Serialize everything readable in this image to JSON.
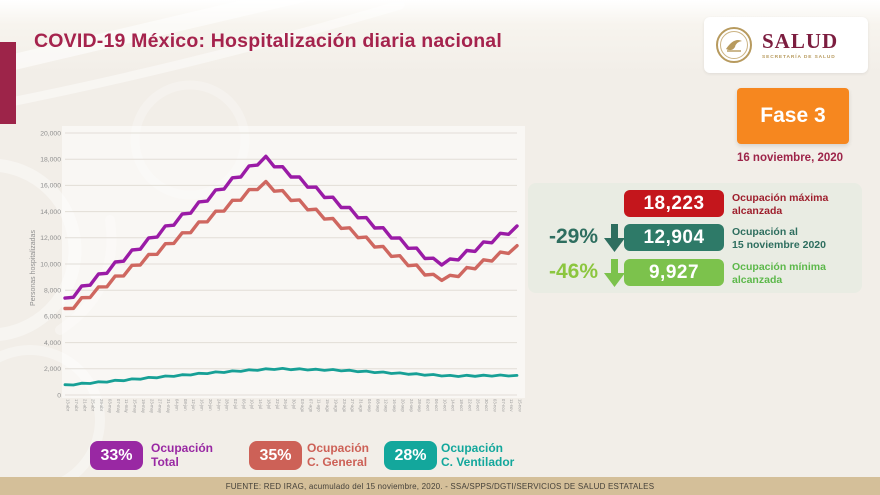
{
  "page": {
    "title": "COVID-19 México: Hospitalización diaria nacional",
    "footer": "FUENTE: RED IRAG, acumulado del 15 noviembre, 2020. -  SSA/SPPS/DGTI/SERVICIOS DE SALUD ESTATALES"
  },
  "logo": {
    "title": "SALUD",
    "subtitle": "SECRETARÍA DE SALUD"
  },
  "phase": {
    "label": "Fase 3",
    "date": "16 noviembre, 2020"
  },
  "colors": {
    "accent_maroon": "#9d2449",
    "title_text": "#a5234d",
    "phase_orange": "#f6871f",
    "logo_maroon": "#7c1d3f",
    "logo_gold": "#b79a5e",
    "panel_bg": "#e9ece3",
    "footer_bg": "#d4bf99"
  },
  "stats": {
    "rows": [
      {
        "delta": "",
        "value": "18,223",
        "label_line1": "Ocupación máxima",
        "label_line2": "alcanzada",
        "pill_color": "#c4161c",
        "delta_color": "#2e6e5f",
        "label_color": "#9e1f2d"
      },
      {
        "delta": "-29%",
        "value": "12,904",
        "label_line1": "Ocupación al",
        "label_line2": "15 noviembre 2020",
        "pill_color": "#2e7a68",
        "delta_color": "#2e6e5f",
        "label_color": "#2e6e5f"
      },
      {
        "delta": "-46%",
        "value": "9,927",
        "label_line1": "Ocupación mínima",
        "label_line2": "alcanzada",
        "pill_color": "#7cc24c",
        "delta_color": "#8cc63f",
        "label_color": "#5cb84a"
      }
    ]
  },
  "badges": [
    {
      "pct": "33%",
      "label_line1": "Ocupación",
      "label_line2": "Total",
      "color": "#9928a3"
    },
    {
      "pct": "35%",
      "label_line1": "Ocupación",
      "label_line2": "C. General",
      "color": "#cd6157"
    },
    {
      "pct": "28%",
      "label_line1": "Ocupación",
      "label_line2": "C. Ventilador",
      "color": "#13a79c"
    }
  ],
  "chart_data": {
    "type": "line",
    "title": "",
    "xlabel": "",
    "ylabel": "Personas hospitalizadas",
    "ylim": [
      0,
      20000
    ],
    "ytick_step": 2000,
    "ytick_labels": [
      "0",
      "2,000",
      "4,000",
      "6,000",
      "8,000",
      "10,000",
      "12,000",
      "14,000",
      "16,000",
      "18,000",
      "20,000"
    ],
    "grid": true,
    "legend_position": "badges-below",
    "x": [
      "13-abr",
      "17-abr",
      "21-abr",
      "25-abr",
      "29-abr",
      "03-may",
      "07-may",
      "11-may",
      "15-may",
      "19-may",
      "23-may",
      "27-may",
      "31-may",
      "04-jun",
      "08-jun",
      "12-jun",
      "16-jun",
      "20-jun",
      "24-jun",
      "28-jun",
      "02-jul",
      "06-jul",
      "10-jul",
      "14-jul",
      "18-jul",
      "22-jul",
      "26-jul",
      "30-jul",
      "03-ago",
      "07-ago",
      "11-ago",
      "15-ago",
      "19-ago",
      "23-ago",
      "27-ago",
      "31-ago",
      "04-sep",
      "08-sep",
      "12-sep",
      "16-sep",
      "20-sep",
      "24-sep",
      "28-sep",
      "02-oct",
      "06-oct",
      "10-oct",
      "14-oct",
      "18-oct",
      "22-oct",
      "26-oct",
      "30-oct",
      "03-nov",
      "07-nov",
      "11-nov",
      "15-nov"
    ],
    "series": [
      {
        "name": "Ocupación Total",
        "color": "#9a1ba6",
        "values": [
          7400,
          7460,
          8320,
          8380,
          9240,
          9290,
          10150,
          10210,
          11070,
          11130,
          11990,
          12050,
          12910,
          12960,
          13820,
          13880,
          14740,
          14800,
          15660,
          15720,
          16580,
          16640,
          17490,
          17550,
          18223,
          17420,
          17430,
          16640,
          16650,
          15860,
          15870,
          15080,
          15100,
          14310,
          14320,
          13530,
          13540,
          12750,
          12770,
          11980,
          11990,
          11200,
          11210,
          10420,
          10440,
          9927,
          10380,
          10310,
          11030,
          10960,
          11690,
          11620,
          12340,
          12270,
          12904
        ]
      },
      {
        "name": "Ocupación C. General",
        "color": "#cf6760",
        "values": [
          6600,
          6610,
          7430,
          7440,
          8250,
          8260,
          9080,
          9090,
          9900,
          9920,
          10730,
          10740,
          11550,
          11570,
          12380,
          12390,
          13210,
          13220,
          14030,
          14040,
          14860,
          14870,
          15680,
          15690,
          16300,
          15560,
          15600,
          14850,
          14890,
          14140,
          14180,
          13430,
          13470,
          12720,
          12760,
          12010,
          12050,
          11290,
          11340,
          10580,
          10630,
          9870,
          9920,
          9160,
          9210,
          8750,
          9140,
          9040,
          9730,
          9630,
          10320,
          10220,
          10910,
          10810,
          11400
        ]
      },
      {
        "name": "Ocupación C. Ventilador",
        "color": "#17a096",
        "values": [
          790,
          765,
          900,
          875,
          1010,
          985,
          1120,
          1095,
          1230,
          1205,
          1340,
          1313,
          1447,
          1420,
          1553,
          1527,
          1660,
          1633,
          1760,
          1720,
          1840,
          1800,
          1920,
          1880,
          2000,
          1947,
          2027,
          1933,
          2000,
          1907,
          1973,
          1880,
          1947,
          1843,
          1890,
          1777,
          1823,
          1710,
          1757,
          1643,
          1690,
          1578,
          1626,
          1514,
          1562,
          1450,
          1498,
          1415,
          1501,
          1428,
          1514,
          1440,
          1527,
          1453,
          1500
        ]
      }
    ],
    "key_values": {
      "max_reached": 18223,
      "current_nov15": 12904,
      "min_reached": 9927,
      "pct_change_current": "-29%",
      "pct_change_min": "-46%"
    }
  }
}
